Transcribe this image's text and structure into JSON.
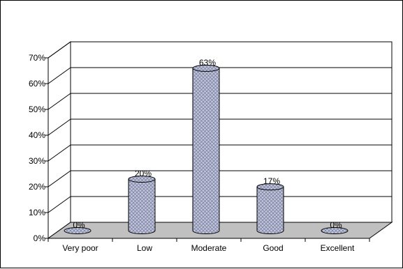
{
  "chart_data": {
    "type": "bar",
    "style": "3d-cylinder",
    "categories": [
      "Very poor",
      "Low",
      "Moderate",
      "Good",
      "Excellent"
    ],
    "values": [
      0,
      20,
      63,
      17,
      0
    ],
    "data_labels": [
      "0%",
      "20%",
      "63%",
      "17%",
      "0%"
    ],
    "title": "",
    "xlabel": "",
    "ylabel": "",
    "ylim": [
      0,
      70
    ],
    "yticks": [
      0,
      10,
      20,
      30,
      40,
      50,
      60,
      70
    ],
    "ytick_labels": [
      "0%",
      "10%",
      "20%",
      "30%",
      "40%",
      "50%",
      "60%",
      "70%"
    ],
    "grid": true,
    "legend": "none",
    "colors": {
      "bar_fill": "#b8bcd8",
      "bar_pattern": "#8a8fa8",
      "floor": "#c0c0c0",
      "gridline": "#000000"
    }
  }
}
